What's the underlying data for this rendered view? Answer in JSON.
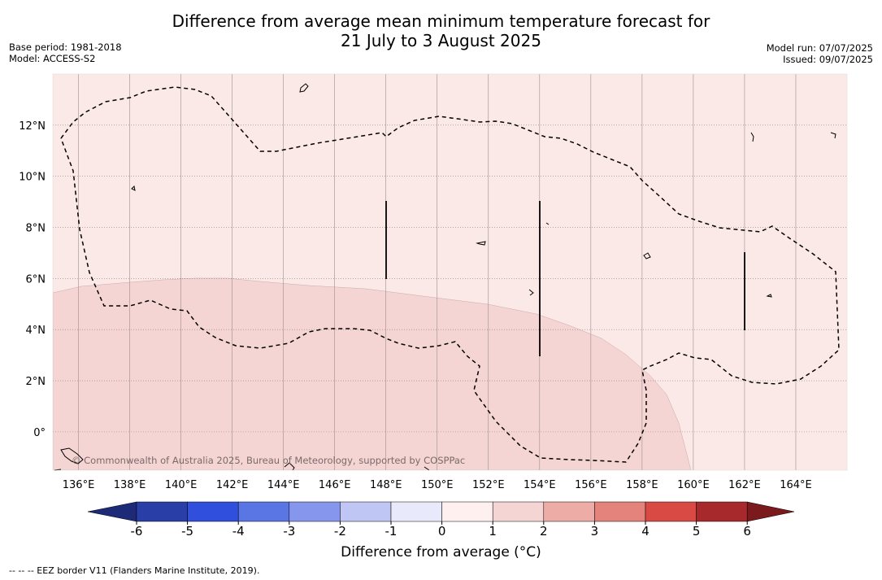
{
  "title": {
    "line1": "Difference from average mean minimum temperature forecast for",
    "line2": "21 July to 3 August 2025"
  },
  "meta": {
    "base_period": "Base period: 1981-2018",
    "model": "Model: ACCESS-S2",
    "model_run": "Model run: 07/07/2025",
    "issued": "Issued: 09/07/2025"
  },
  "map": {
    "lon_range": [
      135,
      166
    ],
    "lat_range": [
      -1.5,
      14
    ],
    "lon_ticks": [
      "136°E",
      "138°E",
      "140°E",
      "142°E",
      "144°E",
      "146°E",
      "148°E",
      "150°E",
      "152°E",
      "154°E",
      "156°E",
      "158°E",
      "160°E",
      "162°E",
      "164°E"
    ],
    "lat_ticks": [
      "0°",
      "2°N",
      "4°N",
      "6°N",
      "8°N",
      "10°N",
      "12°N"
    ],
    "background_fill_color": "#fbe9e8",
    "anomaly_region_color": "#f5d5d4",
    "copyright": "© Commonwealth of Australia 2025, Bureau of Meteorology, supported by COSPPac"
  },
  "colorbar": {
    "ticks": [
      "-6",
      "-5",
      "-4",
      "-3",
      "-2",
      "-1",
      "0",
      "1",
      "2",
      "3",
      "4",
      "5",
      "6"
    ],
    "colors": [
      "#2a3ea8",
      "#2f4fdc",
      "#5a75e4",
      "#8596ec",
      "#c0c6f4",
      "#e8eafb",
      "#fdf0ef",
      "#f5d5d4",
      "#edaca6",
      "#e4827c",
      "#d84a43",
      "#a8292b"
    ],
    "low_extend_color": "#1c2a78",
    "high_extend_color": "#7a1a1c",
    "label": "Difference from average (°C)"
  },
  "footnote": "-- -- -- EEZ border V11 (Flanders Marine Institute, 2019)."
}
